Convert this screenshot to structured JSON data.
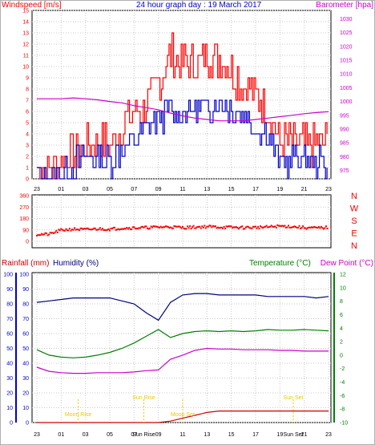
{
  "header": {
    "left": "Windspeed [m/s]",
    "center": "24 hour graph day : 19 March 2017",
    "right": "Barometer [hpa]"
  },
  "labels": {
    "rainfall": "Rainfall (mm)",
    "humidity": "Humidity (%)",
    "temperature": "Temperature (°C)",
    "dewpoint": "Dew Point (°C)",
    "moon_rise": "Moon Rise",
    "sun_rise": "Sun Rise",
    "moon_set": "Moon Set",
    "sun_set": "Sun Set"
  },
  "colors": {
    "wind": "#ff0000",
    "gust": "#0000c8",
    "barometer": "#cc00cc",
    "direction": "#ff0000",
    "humidity": "#000080",
    "temperature": "#008000",
    "dewpoint": "#cc00cc",
    "rain": "#cc0000",
    "events": "#e8c800",
    "grid": "#c8c8c8",
    "left_axis": "#ff0000",
    "right_axis": "#cc00cc",
    "bottom_left_axis": "#0000c8",
    "bottom_right_axis": "#008000"
  },
  "chart_data": [
    {
      "type": "line",
      "name": "wind-and-barometer",
      "x_ticks": [
        "23",
        "01",
        "03",
        "05",
        "07",
        "09",
        "11",
        "13",
        "15",
        "17",
        "19",
        "21",
        "23"
      ],
      "ylim": [
        0,
        15
      ],
      "y_ticks": [
        "0",
        "1",
        "2",
        "3",
        "4",
        "5",
        "6",
        "7",
        "8",
        "9",
        "10",
        "11",
        "12",
        "13",
        "14",
        "15"
      ],
      "y2lim": [
        972,
        1033
      ],
      "y2_ticks": [
        "975",
        "980",
        "985",
        "990",
        "995",
        "1000",
        "1005",
        "1010",
        "1015",
        "1020",
        "1025",
        "1030"
      ],
      "hours": [
        22,
        23,
        24,
        25,
        26,
        27,
        28,
        29,
        30,
        31,
        32,
        33,
        34,
        35,
        36,
        37,
        38,
        39,
        40,
        41,
        42,
        43,
        44,
        45,
        46
      ],
      "series": [
        {
          "name": "Windspeed",
          "values": [
            1.0,
            0.8,
            1.7,
            2.4,
            2.8,
            3.5,
            3.1,
            4.6,
            5.8,
            6.5,
            8.5,
            11.0,
            10.3,
            10.3,
            11.2,
            10.7,
            9.7,
            8.5,
            7.6,
            6.3,
            3.2,
            3.1,
            3.0,
            3.0,
            3.2
          ]
        },
        {
          "name": "Barometer",
          "values": [
            1001.0,
            1001.0,
            1001.0,
            1001.3,
            1001.0,
            1000.6,
            1000.0,
            999.5,
            998.5,
            997.8,
            997.0,
            995.8,
            994.8,
            994.0,
            993.5,
            993.0,
            993.0,
            993.0,
            993.5,
            994.0,
            994.5,
            995.0,
            995.6,
            996.0,
            996.3
          ]
        },
        {
          "values": [
            0.4,
            0.3,
            0.9,
            1.4,
            2.0,
            2.0,
            1.5,
            2.6,
            3.5,
            4.2,
            5.4,
            5.9,
            5.8,
            6.1,
            6.4,
            6.6,
            6.3,
            5.8,
            4.6,
            4.1,
            1.2,
            1.8,
            1.6,
            1.5,
            1.2
          ]
        }
      ]
    },
    {
      "type": "scatter",
      "name": "wind-direction",
      "x_ticks": [
        "23",
        "01",
        "03",
        "05",
        "07",
        "09",
        "11",
        "13",
        "15",
        "17",
        "19",
        "21",
        "23"
      ],
      "ylim": [
        0,
        360
      ],
      "y_ticks": [
        "0",
        "90",
        "180",
        "270",
        "360"
      ],
      "direction_labels": [
        "N",
        "W",
        "S",
        "E",
        "N"
      ],
      "hours": [
        22,
        23,
        24,
        25,
        26,
        27,
        28,
        29,
        30,
        31,
        32,
        33,
        34,
        35,
        36,
        37,
        38,
        39,
        40,
        41,
        42,
        43,
        44,
        45,
        46
      ],
      "values": [
        55,
        55,
        88,
        96,
        92,
        98,
        96,
        104,
        106,
        108,
        112,
        114,
        108,
        112,
        116,
        112,
        110,
        108,
        110,
        112,
        120,
        116,
        108,
        104,
        110
      ]
    },
    {
      "type": "line",
      "name": "humidity-temperature-rain",
      "x_ticks": [
        "23",
        "01",
        "03",
        "05",
        "07",
        "09",
        "11",
        "13",
        "15",
        "17",
        "19",
        "21",
        "23"
      ],
      "ylim": [
        0,
        100
      ],
      "y_ticks": [
        "0",
        "10",
        "20",
        "30",
        "40",
        "50",
        "60",
        "70",
        "80",
        "90",
        "100"
      ],
      "y2lim": [
        -10,
        12
      ],
      "y2_ticks": [
        "-10",
        "-8",
        "-6",
        "-4",
        "-2",
        "0",
        "2",
        "4",
        "6",
        "8",
        "10",
        "12"
      ],
      "hours": [
        22,
        23,
        24,
        25,
        26,
        27,
        28,
        29,
        30,
        31,
        32,
        33,
        34,
        35,
        36,
        37,
        38,
        39,
        40,
        41,
        42,
        43,
        44,
        45,
        46
      ],
      "series": [
        {
          "name": "Humidity",
          "values": [
            81,
            82,
            83,
            84,
            84,
            84,
            84,
            82,
            80,
            74,
            69,
            81,
            86,
            87,
            87,
            86,
            86,
            86,
            86,
            85,
            85,
            85,
            85,
            84,
            85
          ]
        },
        {
          "name": "Temperature",
          "values": [
            0.8,
            0.0,
            -0.3,
            -0.4,
            -0.3,
            0.0,
            0.4,
            1.0,
            1.8,
            2.8,
            3.8,
            2.6,
            3.2,
            3.5,
            3.6,
            3.5,
            3.6,
            3.5,
            3.6,
            3.8,
            3.7,
            3.7,
            3.8,
            3.7,
            3.6
          ]
        },
        {
          "name": "Dew Point",
          "values": [
            -1.8,
            -2.4,
            -2.6,
            -2.7,
            -2.7,
            -2.6,
            -2.6,
            -2.6,
            -2.5,
            -2.3,
            -2.2,
            -0.6,
            0.0,
            0.7,
            1.0,
            0.9,
            0.9,
            0.8,
            0.8,
            0.8,
            0.7,
            0.7,
            0.6,
            0.6,
            0.6
          ]
        },
        {
          "name": "Rainfall",
          "values": [
            0,
            0,
            0,
            0,
            0,
            0,
            0,
            0,
            0,
            0,
            0,
            0.1,
            0.3,
            0.5,
            0.7,
            0.8,
            0.8,
            0.8,
            0.8,
            0.8,
            0.8,
            0.8,
            0.8,
            0.8,
            0.8
          ]
        }
      ],
      "events": [
        {
          "label_key": "moon_rise",
          "hour": 1.4
        },
        {
          "label_key": "sun_rise",
          "hour": 6.8
        },
        {
          "label_key": "moon_set",
          "hour": 10.0
        },
        {
          "label_key": "sun_set",
          "hour": 19.1
        }
      ],
      "event_ticks": [
        "Sun Rise",
        "Sun Set"
      ]
    }
  ]
}
